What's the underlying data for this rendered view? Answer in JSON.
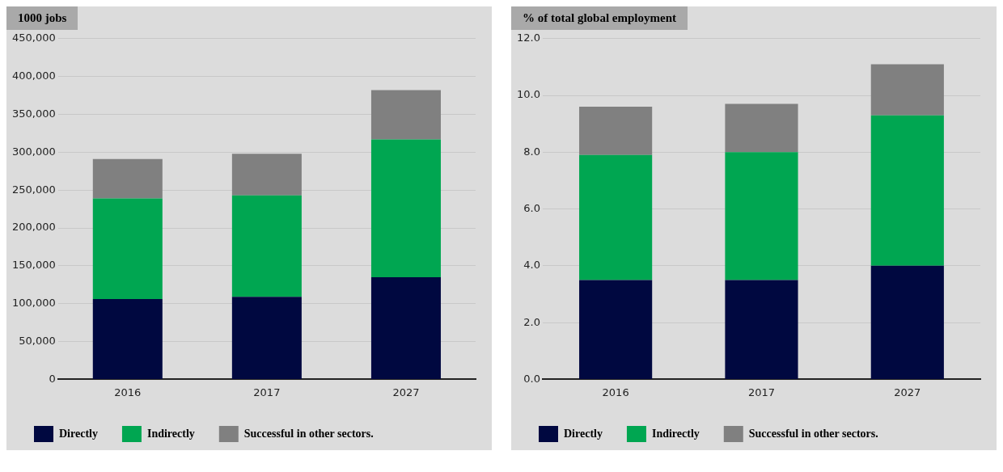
{
  "chart_data": [
    {
      "type": "bar",
      "stacked": true,
      "ylabel": "1000 jobs",
      "categories": [
        "2016",
        "2017",
        "2027"
      ],
      "series": [
        {
          "name": "Directly",
          "color": "#000840",
          "values": [
            106000,
            109000,
            135000
          ]
        },
        {
          "name": "Indirectly",
          "color": "#00a651",
          "values": [
            133000,
            134000,
            182000
          ]
        },
        {
          "name": "Successful in other sectors.",
          "color": "#808080",
          "values": [
            52000,
            55000,
            65000
          ]
        }
      ],
      "ylim": [
        0,
        450000
      ],
      "yticks": [
        {
          "value": 0,
          "label": "0"
        },
        {
          "value": 50000,
          "label": "50,000"
        },
        {
          "value": 100000,
          "label": "100,000"
        },
        {
          "value": 150000,
          "label": "150,000"
        },
        {
          "value": 200000,
          "label": "200,000"
        },
        {
          "value": 250000,
          "label": "250,000"
        },
        {
          "value": 300000,
          "label": "300,000"
        },
        {
          "value": 350000,
          "label": "350,000"
        },
        {
          "value": 400000,
          "label": "400,000"
        },
        {
          "value": 450000,
          "label": "450,000"
        }
      ],
      "grid": "y",
      "legend": "bottom"
    },
    {
      "type": "bar",
      "stacked": true,
      "ylabel": "% of total global employment",
      "categories": [
        "2016",
        "2017",
        "2027"
      ],
      "series": [
        {
          "name": "Directly",
          "color": "#000840",
          "values": [
            3.5,
            3.5,
            4.0
          ]
        },
        {
          "name": "Indirectly",
          "color": "#00a651",
          "values": [
            4.4,
            4.5,
            5.3
          ]
        },
        {
          "name": "Successful in other sectors.",
          "color": "#808080",
          "values": [
            1.7,
            1.7,
            1.8
          ]
        }
      ],
      "ylim": [
        0,
        12
      ],
      "yticks": [
        {
          "value": 0,
          "label": "0.0"
        },
        {
          "value": 2,
          "label": "2.0"
        },
        {
          "value": 4,
          "label": "4.0"
        },
        {
          "value": 6,
          "label": "6.0"
        },
        {
          "value": 8,
          "label": "8.0"
        },
        {
          "value": 10,
          "label": "10.0"
        },
        {
          "value": 12,
          "label": "12.0"
        }
      ],
      "grid": "y",
      "legend": "bottom"
    }
  ]
}
